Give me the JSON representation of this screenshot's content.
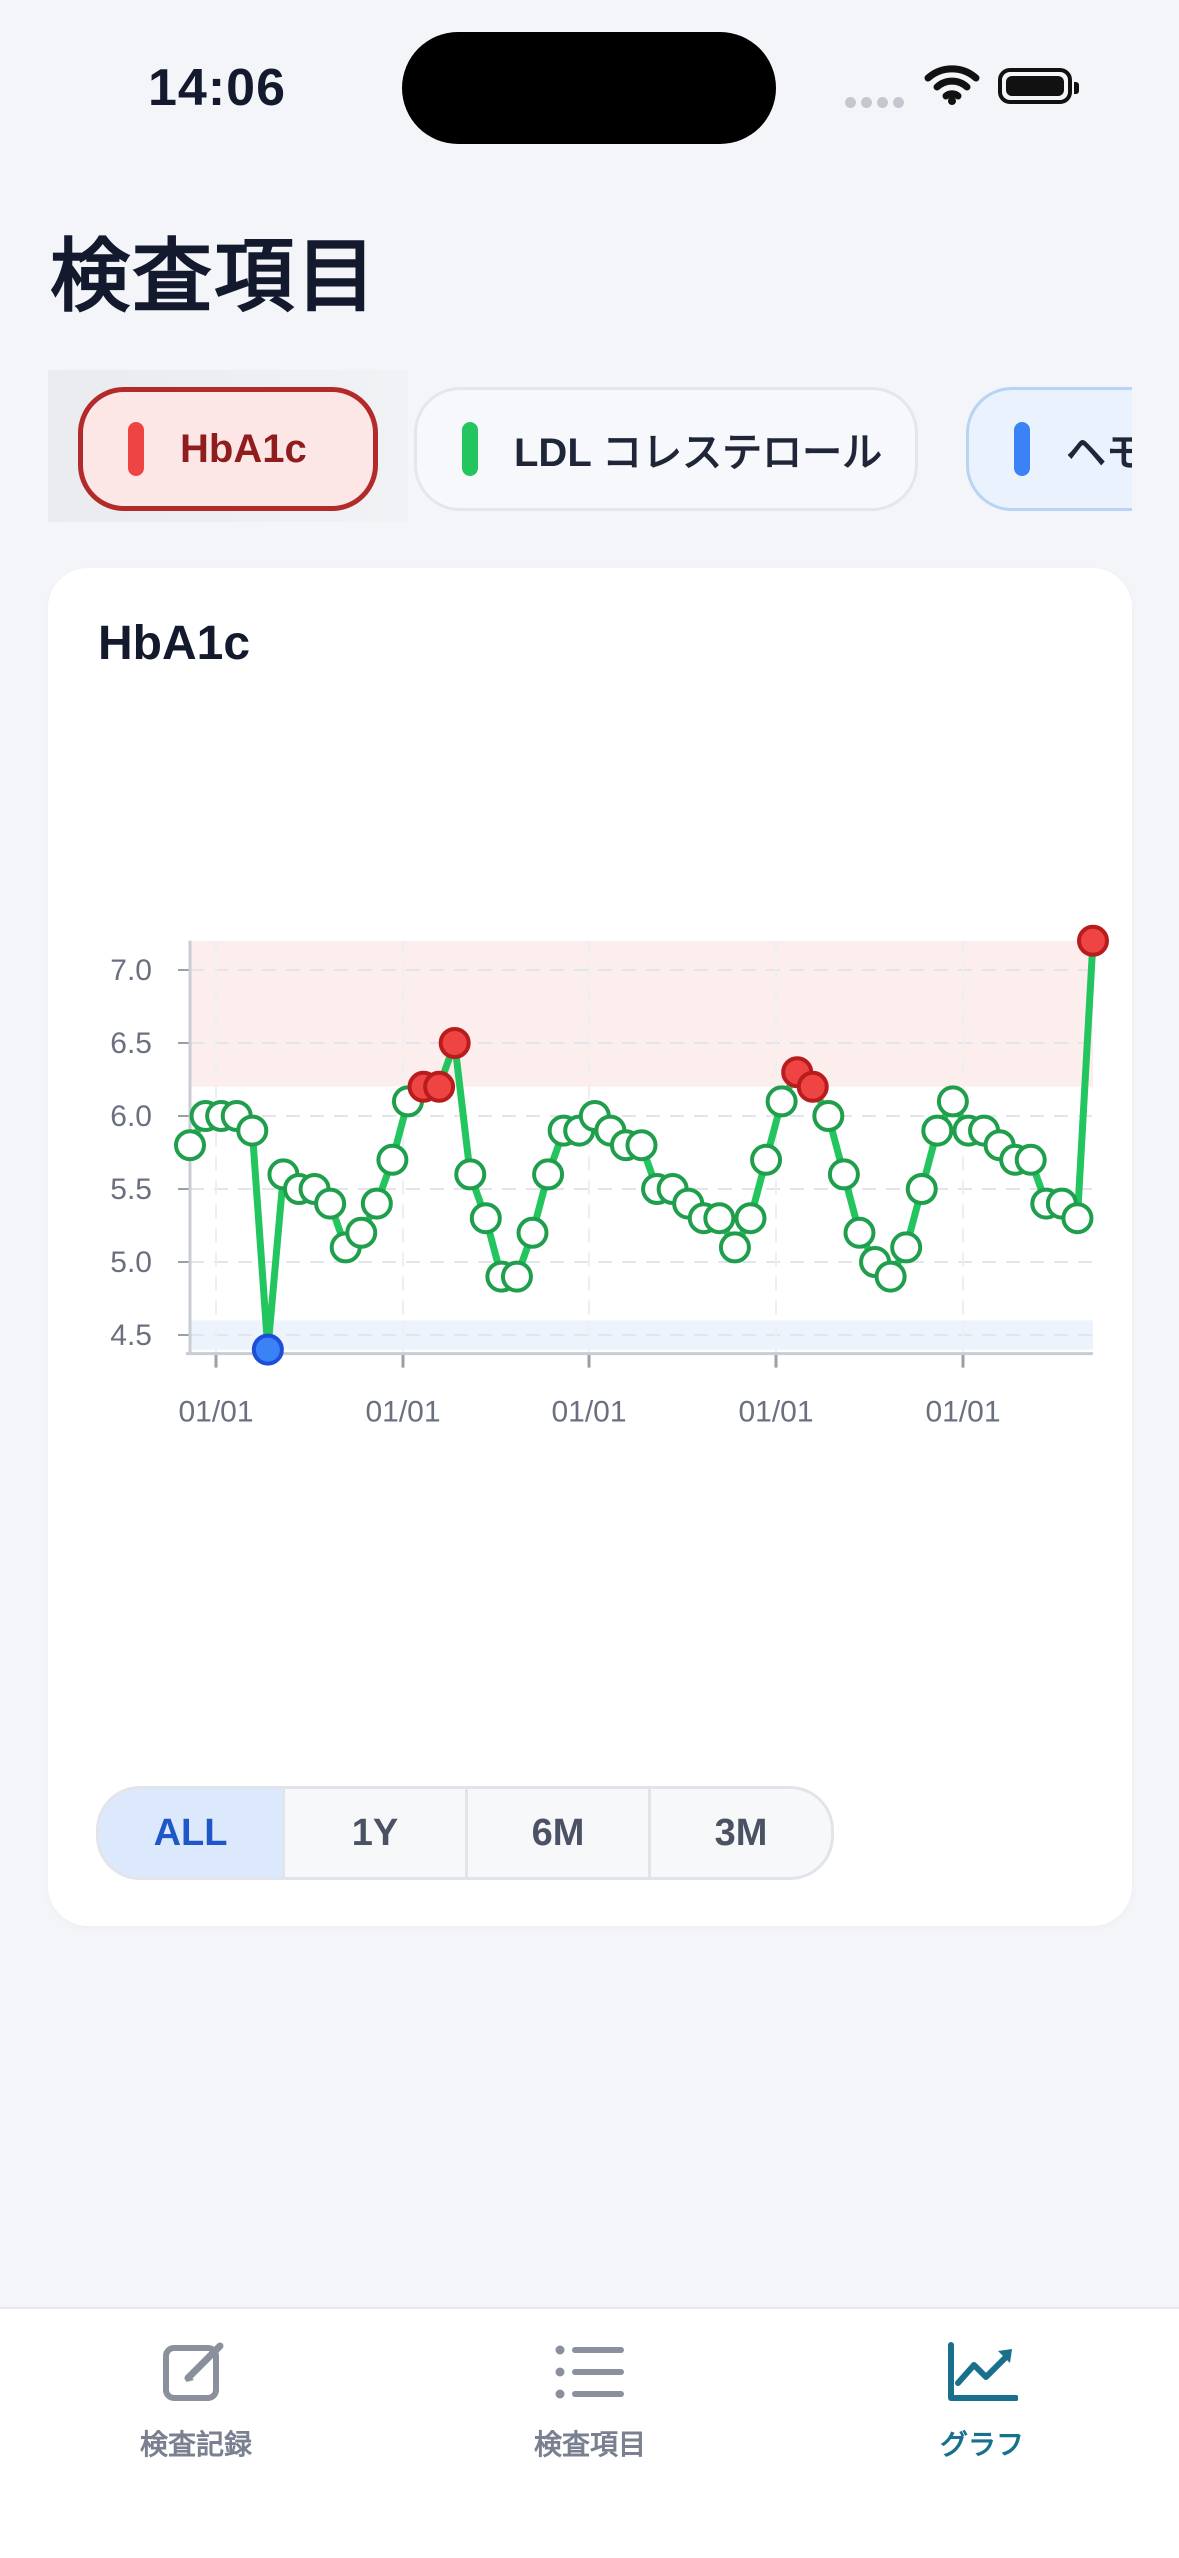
{
  "status": {
    "time": "14:06"
  },
  "header": {
    "title": "検査項目"
  },
  "chips": [
    {
      "label": "HbA1c",
      "color": "#ef4444",
      "active": true
    },
    {
      "label": "LDL コレステロール",
      "color": "#22c55e",
      "active": false
    },
    {
      "label": "ヘモ",
      "color": "#3b82f6",
      "active": false
    }
  ],
  "card": {
    "title": "HbA1c"
  },
  "chart_data": {
    "type": "line",
    "title": "HbA1c",
    "x_tick_labels": [
      "01/01",
      "01/01",
      "01/01",
      "01/01",
      "01/01"
    ],
    "y_ticks": [
      4.5,
      5.0,
      5.5,
      6.0,
      6.5,
      7.0
    ],
    "y_tick_labels": [
      "4.5",
      "5.0",
      "5.5",
      "6.0",
      "6.5",
      "7.0"
    ],
    "ylim": [
      4.4,
      7.2
    ],
    "high_band": [
      6.2,
      7.2
    ],
    "low_band": [
      4.4,
      4.6
    ],
    "series": [
      {
        "color": "#22c55e",
        "values": [
          5.8,
          6.0,
          6.0,
          6.0,
          5.9,
          4.4,
          5.6,
          5.5,
          5.5,
          5.4,
          5.1,
          5.2,
          5.4,
          5.7,
          6.1,
          6.2,
          6.2,
          6.5,
          5.6,
          5.3,
          4.9,
          4.9,
          5.2,
          5.6,
          5.9,
          5.9,
          6.0,
          5.9,
          5.8,
          5.8,
          5.5,
          5.5,
          5.4,
          5.3,
          5.3,
          5.1,
          5.3,
          5.7,
          6.1,
          6.3,
          6.2,
          6.0,
          5.6,
          5.2,
          5.0,
          4.9,
          5.1,
          5.5,
          5.9,
          6.1,
          5.9,
          5.9,
          5.8,
          5.7,
          5.7,
          5.4,
          5.4,
          5.3,
          7.2
        ]
      }
    ],
    "marker_colors": {
      "normal": "#ffffff",
      "high": "#ef4444",
      "low": "#3b82f6"
    },
    "grid": true
  },
  "range": {
    "options": [
      "ALL",
      "1Y",
      "6M",
      "3M"
    ],
    "selected": "ALL"
  },
  "tabs": [
    {
      "label": "検査記録",
      "icon": "edit-icon",
      "active": false
    },
    {
      "label": "検査項目",
      "icon": "list-icon",
      "active": false
    },
    {
      "label": "グラフ",
      "icon": "chart-icon",
      "active": true
    }
  ]
}
